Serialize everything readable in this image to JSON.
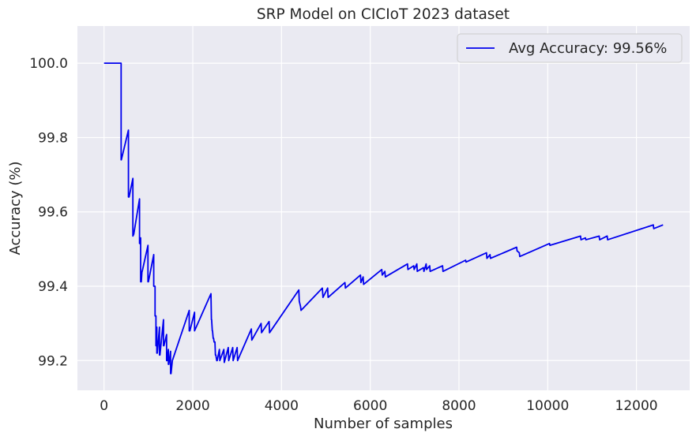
{
  "chart_data": {
    "type": "line",
    "title": "SRP Model on CICIoT 2023 dataset",
    "xlabel": "Number of samples",
    "ylabel": "Accuracy (%)",
    "xlim": [
      -600,
      13200
    ],
    "ylim": [
      99.12,
      100.1
    ],
    "xticks": [
      0,
      2000,
      4000,
      6000,
      8000,
      10000,
      12000
    ],
    "yticks": [
      99.2,
      99.4,
      99.6,
      99.8,
      100.0
    ],
    "xtick_labels": [
      "0",
      "2000",
      "4000",
      "6000",
      "8000",
      "10000",
      "12000"
    ],
    "ytick_labels": [
      "99.2",
      "99.4",
      "99.6",
      "99.8",
      "100.0"
    ],
    "grid": true,
    "background": "#eaeaf2",
    "grid_color": "#ffffff",
    "legend_position": "top-right",
    "series": [
      {
        "name": "Avg Accuracy: 99.56%",
        "color": "#0000ee",
        "x": [
          0,
          385,
          385,
          390,
          550,
          550,
          565,
          650,
          650,
          670,
          800,
          800,
          810,
          825,
          825,
          840,
          855,
          860,
          990,
          990,
          1000,
          1120,
          1120,
          1130,
          1150,
          1150,
          1160,
          1170,
          1170,
          1175,
          1180,
          1190,
          1190,
          1200,
          1250,
          1250,
          1260,
          1340,
          1340,
          1350,
          1410,
          1410,
          1420,
          1450,
          1450,
          1460,
          1500,
          1500,
          1510,
          1540,
          1540,
          1920,
          1920,
          1935,
          2040,
          2040,
          2410,
          2420,
          2425,
          2440,
          2445,
          2460,
          2470,
          2480,
          2500,
          2510,
          2520,
          2540,
          2550,
          2600,
          2610,
          2700,
          2710,
          2800,
          2810,
          2900,
          2910,
          3000,
          3010,
          3320,
          3330,
          3540,
          3550,
          3720,
          3730,
          4390,
          4400,
          4420,
          4430,
          4440,
          4920,
          4935,
          5040,
          5050,
          5430,
          5440,
          5780,
          5790,
          5840,
          5850,
          6260,
          6270,
          6330,
          6340,
          6840,
          6850,
          6980,
          6990,
          7050,
          7060,
          7200,
          7210,
          7260,
          7270,
          7340,
          7350,
          7630,
          7640,
          8150,
          8160,
          8620,
          8630,
          8700,
          8710,
          9300,
          9310,
          9360,
          9370,
          10040,
          10050,
          10740,
          10750,
          10850,
          10860,
          11160,
          11170,
          11340,
          11350,
          12380,
          12390,
          12600
        ],
        "y": [
          100.0,
          100.0,
          99.74,
          99.74,
          99.82,
          99.64,
          99.64,
          99.69,
          99.535,
          99.54,
          99.635,
          99.515,
          99.53,
          99.53,
          99.412,
          99.412,
          99.44,
          99.44,
          99.51,
          99.412,
          99.412,
          99.485,
          99.4,
          99.4,
          99.4,
          99.32,
          99.32,
          99.32,
          99.24,
          99.24,
          99.24,
          99.29,
          99.22,
          99.22,
          99.29,
          99.215,
          99.215,
          99.31,
          99.24,
          99.24,
          99.27,
          99.2,
          99.2,
          99.23,
          99.19,
          99.19,
          99.225,
          99.165,
          99.165,
          99.2,
          99.2,
          99.335,
          99.28,
          99.28,
          99.33,
          99.28,
          99.38,
          99.31,
          99.31,
          99.28,
          99.28,
          99.26,
          99.26,
          99.25,
          99.25,
          99.215,
          99.215,
          99.2,
          99.2,
          99.23,
          99.2,
          99.23,
          99.195,
          99.235,
          99.2,
          99.235,
          99.2,
          99.235,
          99.2,
          99.285,
          99.255,
          99.3,
          99.275,
          99.305,
          99.275,
          99.39,
          99.36,
          99.35,
          99.345,
          99.335,
          99.395,
          99.37,
          99.395,
          99.37,
          99.41,
          99.395,
          99.43,
          99.41,
          99.425,
          99.405,
          99.445,
          99.43,
          99.44,
          99.425,
          99.46,
          99.445,
          99.455,
          99.445,
          99.46,
          99.44,
          99.45,
          99.44,
          99.46,
          99.445,
          99.455,
          99.44,
          99.455,
          99.44,
          99.47,
          99.465,
          99.49,
          99.475,
          99.485,
          99.475,
          99.505,
          99.495,
          99.49,
          99.48,
          99.515,
          99.51,
          99.535,
          99.525,
          99.53,
          99.525,
          99.535,
          99.525,
          99.535,
          99.525,
          99.565,
          99.555,
          99.565
        ]
      }
    ]
  }
}
